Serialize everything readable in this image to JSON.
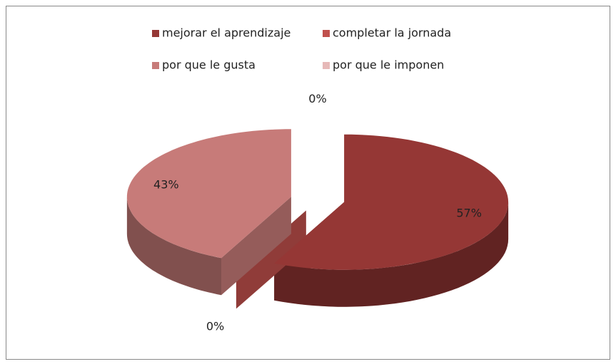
{
  "chart_data": {
    "type": "pie",
    "categories": [
      "mejorar el aprendizaje",
      "completar la jornada",
      "por que le gusta",
      "por que le imponen"
    ],
    "values": [
      57,
      0,
      43,
      0
    ],
    "value_labels": [
      "57%",
      "0%",
      "43%",
      "0%"
    ],
    "colors": [
      "#953735",
      "#c0504d",
      "#c77b79",
      "#e6b9b8"
    ],
    "legend": "top"
  }
}
